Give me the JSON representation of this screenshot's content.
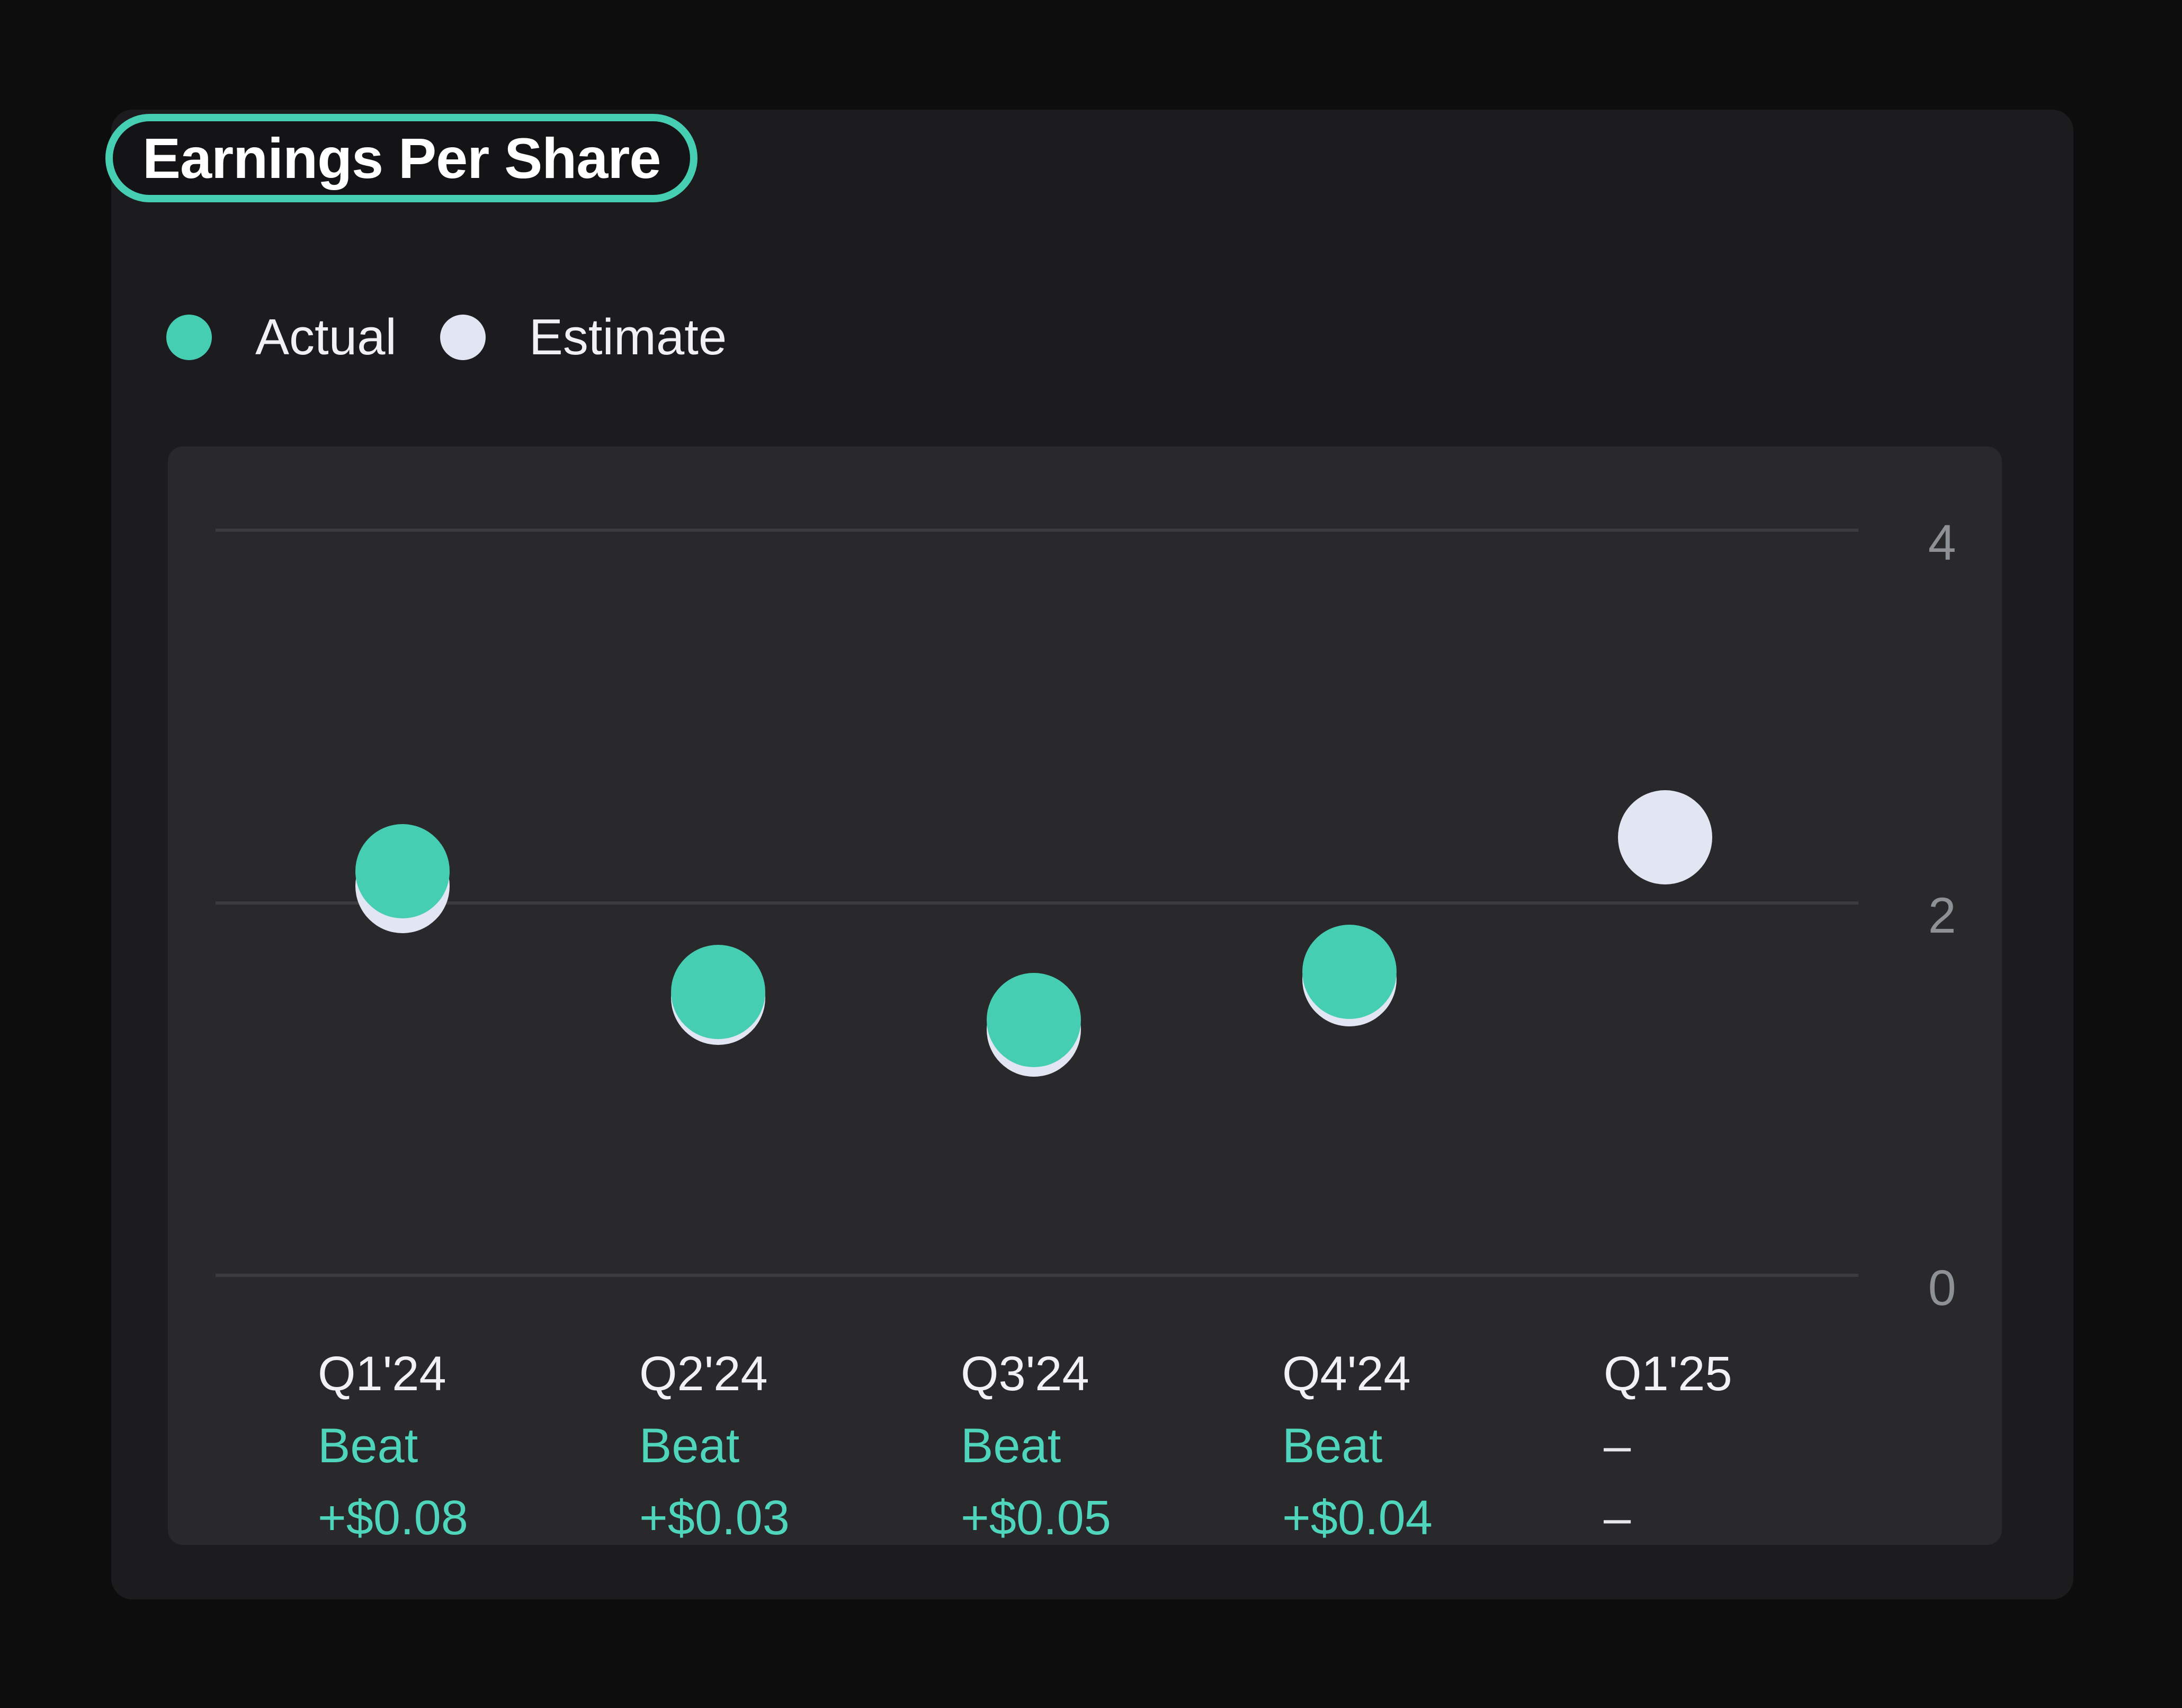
{
  "page": {
    "title": "Earnings Per Share"
  },
  "legend": {
    "items": [
      {
        "label": "Actual",
        "color": "#46ceb3"
      },
      {
        "label": "Estimate",
        "color": "#e2e6f3"
      }
    ]
  },
  "colors": {
    "background": "#0d0d0e",
    "card": "#1c1c1e",
    "panel": "#29292b",
    "gridline": "#3c3c3e",
    "axis_text": "#8d9095",
    "accent_teal": "#46ceb3",
    "teal_text": "#4fd5bb",
    "estimate": "#e2e6f3",
    "muted_dash": "#e9e9ec",
    "white_text": "#f2f2f4",
    "highlight_ring": "#46ceb3"
  },
  "chart_data": {
    "type": "scatter",
    "title": "Earnings Per Share",
    "categories": [
      "Q1'24",
      "Q2'24",
      "Q3'24",
      "Q4'24",
      "Q1'25"
    ],
    "series": [
      {
        "name": "Actual",
        "color": "#46ceb3",
        "values": [
          2.17,
          1.52,
          1.37,
          1.63,
          null
        ]
      },
      {
        "name": "Estimate",
        "color": "#e2e6f3",
        "values": [
          2.09,
          1.49,
          1.32,
          1.59,
          2.35
        ]
      }
    ],
    "ylim": [
      0,
      4
    ],
    "yticks": [
      4,
      2,
      0
    ],
    "xlabel": "",
    "ylabel": "",
    "grid": "horizontal",
    "legend_position": "top-left",
    "y_axis_side": "right",
    "footer_rows": {
      "status": [
        "Beat",
        "Beat",
        "Beat",
        "Beat",
        "–"
      ],
      "surprise": [
        "+$0.08",
        "+$0.03",
        "+$0.05",
        "+$0.04",
        "–"
      ]
    }
  }
}
